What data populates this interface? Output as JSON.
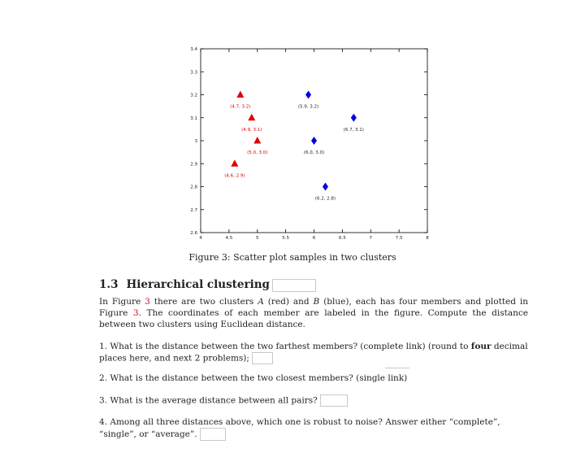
{
  "chart_data": {
    "type": "scatter",
    "xlim": [
      4,
      8
    ],
    "ylim": [
      2.6,
      3.4
    ],
    "x_ticks": [
      "4",
      "4.5",
      "5",
      "5.5",
      "6",
      "6.5",
      "7",
      "7.5",
      "8"
    ],
    "y_ticks": [
      "2.6",
      "2.7",
      "2.8",
      "2.9",
      "3",
      "3.1",
      "3.2",
      "3.3",
      "3.4"
    ],
    "grid": false,
    "series": [
      {
        "color": "#e00000",
        "marker": "triangle",
        "points": [
          {
            "x": 4.7,
            "y": 3.2,
            "label": "(4.7, 3.2)"
          },
          {
            "x": 4.9,
            "y": 3.1,
            "label": "(4.9, 3.1)"
          },
          {
            "x": 5.0,
            "y": 3.0,
            "label": "(5.0, 3.0)"
          },
          {
            "x": 4.6,
            "y": 2.9,
            "label": "(4.6, 2.9)"
          }
        ]
      },
      {
        "color": "#0000e0",
        "marker": "diamond",
        "points": [
          {
            "x": 5.9,
            "y": 3.2,
            "label": "(5.9, 3.2)"
          },
          {
            "x": 6.7,
            "y": 3.1,
            "label": "(6.7, 3.1)"
          },
          {
            "x": 6.0,
            "y": 3.0,
            "label": "(6.0, 3.0)"
          },
          {
            "x": 6.2,
            "y": 2.8,
            "label": "(6.2, 2.8)"
          }
        ]
      }
    ]
  },
  "caption": "Figure 3: Scatter plot samples in two clusters",
  "section": {
    "number": "1.3",
    "title": "Hierarchical clustering"
  },
  "intro": {
    "t1": "In Figure ",
    "ref1": "3",
    "t2": " there are two clusters ",
    "a": "A",
    "t3": " (red) and ",
    "b": "B",
    "t4": " (blue), each has four members and plotted in Figure ",
    "ref2": "3",
    "t5": ". The coordinates of each member are labeled in the figure. Compute the distance between two clusters using Euclidean distance."
  },
  "questions": {
    "q1_a": "1. What is the distance between the two farthest members? (complete link) (round to ",
    "q1_bold": "four",
    "q1_b": " decimal places here, and next 2 problems);",
    "q2": "2. What is the distance between the two closest members? (single link)",
    "q3": "3. What is the average distance between all pairs?",
    "q4": "4. Among all three distances above, which one is robust to noise? Answer either “complete”, “single”, or “average”."
  }
}
